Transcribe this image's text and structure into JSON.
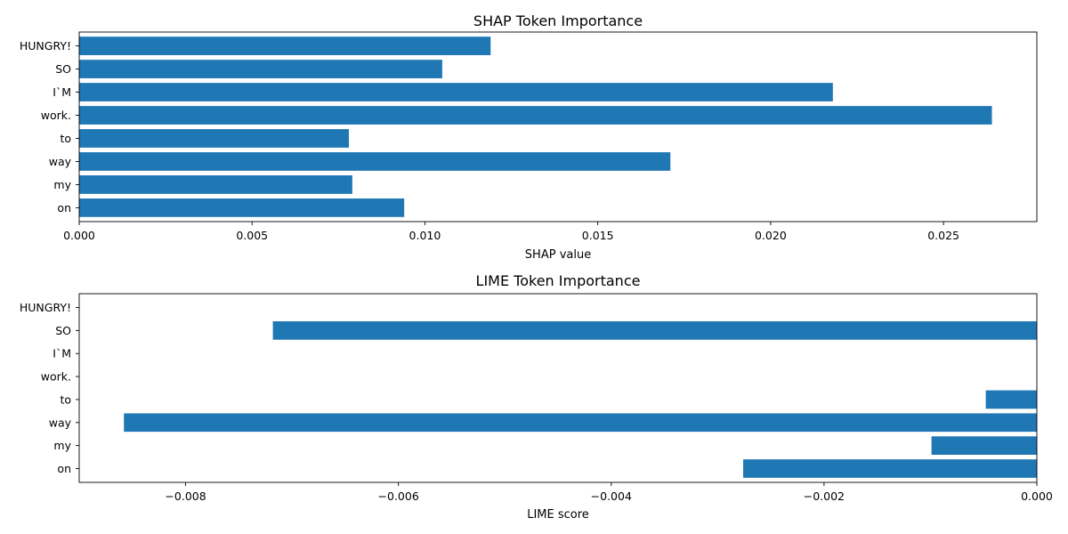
{
  "chart_data": [
    {
      "type": "bar",
      "orientation": "horizontal",
      "title": "SHAP Token Importance",
      "xlabel": "SHAP value",
      "ylabel": "",
      "categories": [
        "on",
        "my",
        "way",
        "to",
        "work.",
        "I`M",
        "SO",
        "HUNGRY!"
      ],
      "values": [
        0.0094,
        0.0079,
        0.0171,
        0.0078,
        0.0264,
        0.0218,
        0.0105,
        0.0119
      ],
      "xlim": [
        0,
        0.0277
      ],
      "xticks": [
        0,
        0.005,
        0.01,
        0.015,
        0.02,
        0.025
      ],
      "xtick_labels": [
        "0.000",
        "0.005",
        "0.010",
        "0.015",
        "0.020",
        "0.025"
      ],
      "color": "#1f77b4",
      "grid": false
    },
    {
      "type": "bar",
      "orientation": "horizontal",
      "title": "LIME Token Importance",
      "xlabel": "LIME score",
      "ylabel": "",
      "categories": [
        "on",
        "my",
        "way",
        "to",
        "work.",
        "I`M",
        "SO",
        "HUNGRY!"
      ],
      "values": [
        -0.00276,
        -0.00099,
        -0.00858,
        -0.00048,
        0,
        0,
        -0.00718,
        0
      ],
      "xlim": [
        -0.009,
        0
      ],
      "xticks": [
        -0.008,
        -0.006,
        -0.004,
        -0.002,
        0
      ],
      "xtick_labels": [
        "−0.008",
        "−0.006",
        "−0.004",
        "−0.002",
        "0.000"
      ],
      "color": "#1f77b4",
      "grid": false
    }
  ]
}
